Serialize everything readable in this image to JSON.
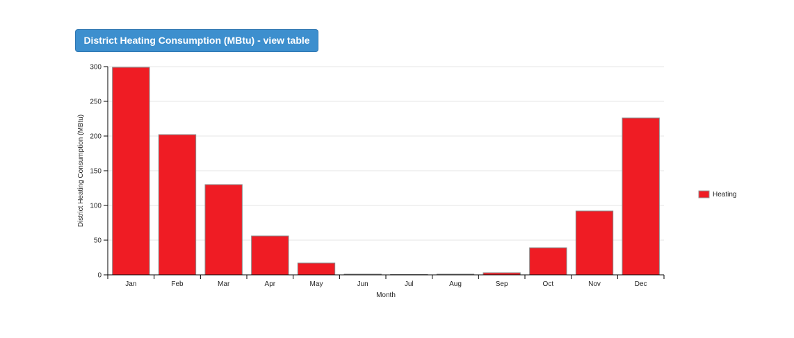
{
  "header": {
    "title": "District Heating Consumption (MBtu) - view table"
  },
  "chart_data": {
    "type": "bar",
    "categories": [
      "Jan",
      "Feb",
      "Mar",
      "Apr",
      "May",
      "Jun",
      "Jul",
      "Aug",
      "Sep",
      "Oct",
      "Nov",
      "Dec"
    ],
    "series": [
      {
        "name": "Heating",
        "color": "#ef1c24",
        "values": [
          299,
          202,
          130,
          56,
          17,
          1,
          0.5,
          1,
          3,
          39,
          92,
          226
        ]
      }
    ],
    "title": "District Heating Consumption (MBtu) - view table",
    "xlabel": "Month",
    "ylabel": "District Heating Consumption (MBtu)",
    "ylim": [
      0,
      300
    ],
    "yticks": [
      0,
      50,
      100,
      150,
      200,
      250,
      300
    ],
    "grid": true,
    "legend": "right"
  }
}
